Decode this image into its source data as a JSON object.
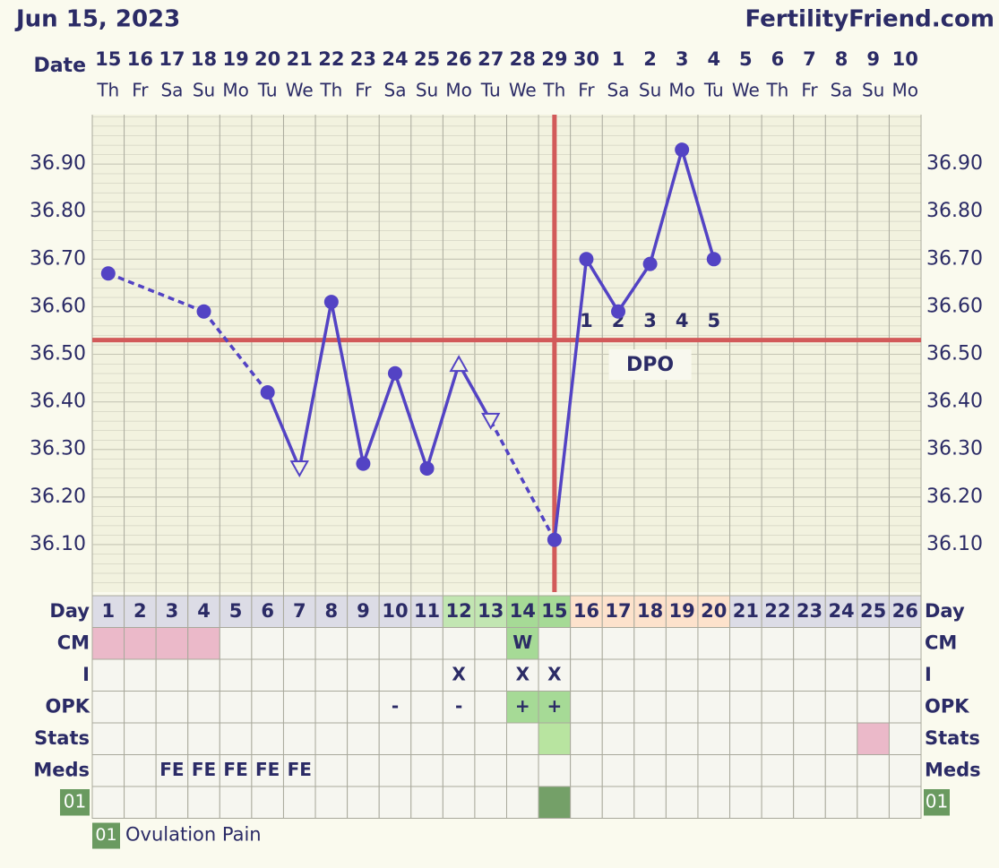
{
  "header": {
    "date": "Jun 15, 2023",
    "site": "FertilityFriend.com"
  },
  "chart_data": {
    "type": "line",
    "x_label": "Date",
    "categories": [
      "15",
      "16",
      "17",
      "18",
      "19",
      "20",
      "21",
      "22",
      "23",
      "24",
      "25",
      "26",
      "27",
      "28",
      "29",
      "30",
      "1",
      "2",
      "3",
      "4",
      "5",
      "6",
      "7",
      "8",
      "9",
      "10"
    ],
    "weekdays": [
      "Th",
      "Fr",
      "Sa",
      "Su",
      "Mo",
      "Tu",
      "We",
      "Th",
      "Fr",
      "Sa",
      "Su",
      "Mo",
      "Tu",
      "We",
      "Th",
      "Fr",
      "Sa",
      "Su",
      "Mo",
      "Tu",
      "We",
      "Th",
      "Fr",
      "Sa",
      "Su",
      "Mo"
    ],
    "ylim": [
      36.0,
      37.0
    ],
    "yticks": [
      {
        "value": 36.1,
        "label": "36.10"
      },
      {
        "value": 36.2,
        "label": "36.20"
      },
      {
        "value": 36.3,
        "label": "36.30"
      },
      {
        "value": 36.4,
        "label": "36.40"
      },
      {
        "value": 36.5,
        "label": "36.50"
      },
      {
        "value": 36.6,
        "label": "36.60"
      },
      {
        "value": 36.7,
        "label": "36.70"
      },
      {
        "value": 36.8,
        "label": "36.80"
      },
      {
        "value": 36.9,
        "label": "36.90"
      }
    ],
    "grid": true,
    "series": [
      {
        "color": "#5343c4",
        "values": [
          36.67,
          null,
          null,
          36.59,
          null,
          36.42,
          36.26,
          36.61,
          36.27,
          36.46,
          36.26,
          36.48,
          36.36,
          null,
          36.11,
          36.7,
          36.59,
          36.69,
          36.93,
          36.7,
          null,
          null,
          null,
          null,
          null,
          null
        ],
        "markers": [
          "circle",
          null,
          null,
          "circle",
          null,
          "circle",
          "open-down",
          "circle",
          "circle",
          "circle",
          "circle",
          "open-up",
          "open-down",
          null,
          "circle",
          "circle",
          "circle",
          "circle",
          "circle",
          "circle",
          null,
          null,
          null,
          null,
          null,
          null
        ]
      }
    ],
    "coverline": 36.53,
    "coverline_color": "#d25a5a",
    "ovulation_day": 15,
    "dpo_title": "DPO",
    "dpo": [
      null,
      null,
      null,
      null,
      null,
      null,
      null,
      null,
      null,
      null,
      null,
      null,
      null,
      null,
      null,
      1,
      2,
      3,
      4,
      5,
      null,
      null,
      null,
      null,
      null,
      null
    ]
  },
  "table": {
    "day_label": "Day",
    "days": [
      1,
      2,
      3,
      4,
      5,
      6,
      7,
      8,
      9,
      10,
      11,
      12,
      13,
      14,
      15,
      16,
      17,
      18,
      19,
      20,
      21,
      22,
      23,
      24,
      25,
      26
    ],
    "day_fills": [
      "#dcdce6",
      "#dcdce6",
      "#dcdce6",
      "#dcdce6",
      "#dcdce6",
      "#dcdce6",
      "#dcdce6",
      "#dcdce6",
      "#dcdce6",
      "#dcdce6",
      "#dcdce6",
      "#c2e6b2",
      "#c2e6b2",
      "#a6da96",
      "#a6da96",
      "#fde2cc",
      "#fde2cc",
      "#fde2cc",
      "#fde2cc",
      "#fde2cc",
      "#dcdce6",
      "#dcdce6",
      "#dcdce6",
      "#dcdce6",
      "#dcdce6",
      "#dcdce6"
    ],
    "rows": [
      {
        "label": "CM",
        "cells": [
          null,
          null,
          null,
          null,
          null,
          null,
          null,
          null,
          null,
          null,
          null,
          null,
          null,
          "W",
          null,
          null,
          null,
          null,
          null,
          null,
          null,
          null,
          null,
          null,
          null,
          null
        ],
        "fills": [
          "#ebb9c9",
          "#ebb9c9",
          "#ebb9c9",
          "#ebb9c9",
          null,
          null,
          null,
          null,
          null,
          null,
          null,
          null,
          null,
          "#a6da96",
          null,
          null,
          null,
          null,
          null,
          null,
          null,
          null,
          null,
          null,
          null,
          null
        ]
      },
      {
        "label": "I",
        "cells": [
          null,
          null,
          null,
          null,
          null,
          null,
          null,
          null,
          null,
          null,
          null,
          "X",
          null,
          "X",
          "X",
          null,
          null,
          null,
          null,
          null,
          null,
          null,
          null,
          null,
          null,
          null
        ]
      },
      {
        "label": "OPK",
        "cells": [
          null,
          null,
          null,
          null,
          null,
          null,
          null,
          null,
          null,
          "-",
          null,
          "-",
          null,
          "+",
          "+",
          null,
          null,
          null,
          null,
          null,
          null,
          null,
          null,
          null,
          null,
          null
        ],
        "fills": [
          null,
          null,
          null,
          null,
          null,
          null,
          null,
          null,
          null,
          null,
          null,
          null,
          null,
          "#a6da96",
          "#a6da96",
          null,
          null,
          null,
          null,
          null,
          null,
          null,
          null,
          null,
          null,
          null
        ]
      },
      {
        "label": "Stats",
        "fills": [
          null,
          null,
          null,
          null,
          null,
          null,
          null,
          null,
          null,
          null,
          null,
          null,
          null,
          null,
          "#b8e4a0",
          null,
          null,
          null,
          null,
          null,
          null,
          null,
          null,
          null,
          "#ebb9c9",
          null
        ]
      },
      {
        "label": "Meds",
        "cells": [
          null,
          null,
          "FE",
          "FE",
          "FE",
          "FE",
          "FE",
          null,
          null,
          null,
          null,
          null,
          null,
          null,
          null,
          null,
          null,
          null,
          null,
          null,
          null,
          null,
          null,
          null,
          null,
          null
        ]
      },
      {
        "label": "01",
        "badge": true,
        "fills": [
          null,
          null,
          null,
          null,
          null,
          null,
          null,
          null,
          null,
          null,
          null,
          null,
          null,
          null,
          "#74a068",
          null,
          null,
          null,
          null,
          null,
          null,
          null,
          null,
          null,
          null,
          null
        ]
      }
    ]
  },
  "legend": {
    "code": "01",
    "text": "Ovulation Pain"
  }
}
